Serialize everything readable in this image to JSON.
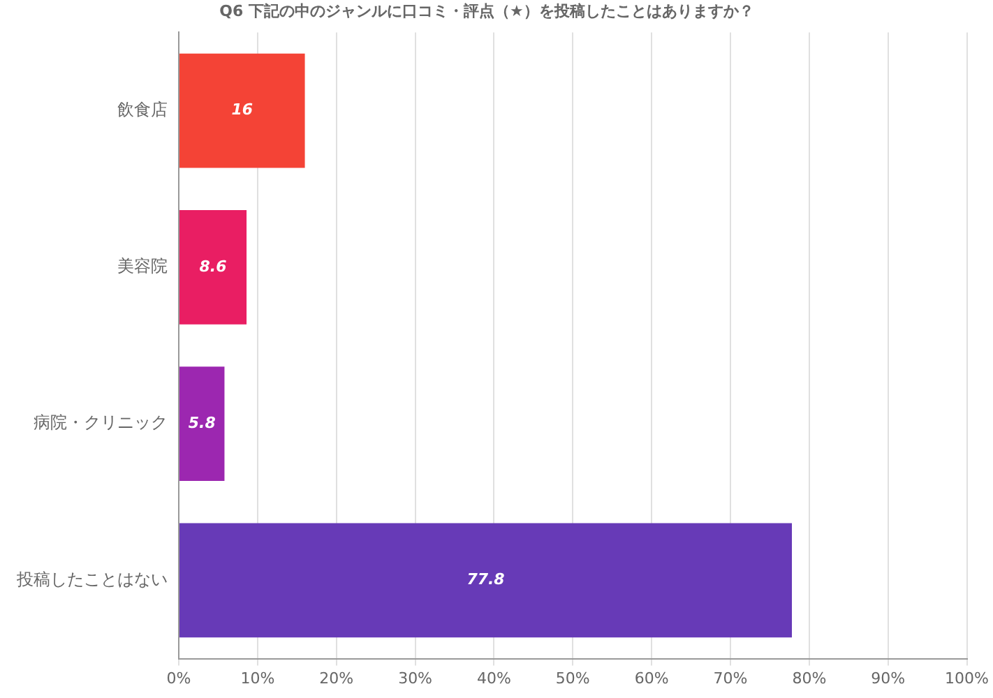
{
  "chart_data": {
    "type": "bar",
    "orientation": "horizontal",
    "title": "Q6 下記の中のジャンルに口コミ・評点（★）を投稿したことはありますか？",
    "categories": [
      "飲食店",
      "美容院",
      "病院・クリニック",
      "投稿したことはない"
    ],
    "values": [
      16,
      8.6,
      5.8,
      77.8
    ],
    "colors": [
      "#f44336",
      "#e91e63",
      "#9c27b0",
      "#673ab7"
    ],
    "xlim": [
      0,
      100
    ],
    "xticks": [
      {
        "value": 0,
        "label": "0%"
      },
      {
        "value": 10,
        "label": "10%"
      },
      {
        "value": 20,
        "label": "20%"
      },
      {
        "value": 30,
        "label": "30%"
      },
      {
        "value": 40,
        "label": "40%"
      },
      {
        "value": 50,
        "label": "50%"
      },
      {
        "value": 60,
        "label": "60%"
      },
      {
        "value": 70,
        "label": "70%"
      },
      {
        "value": 80,
        "label": "80%"
      },
      {
        "value": 90,
        "label": "90%"
      },
      {
        "value": 100,
        "label": "100%"
      }
    ],
    "grid": "x",
    "data_labels": true,
    "legend": false
  }
}
